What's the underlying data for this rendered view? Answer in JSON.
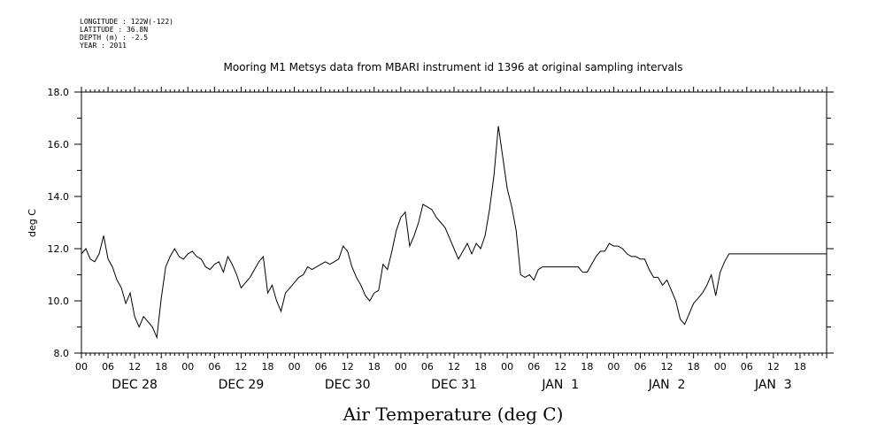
{
  "header": {
    "longitude": "LONGITUDE : 122W(-122)",
    "latitude": "LATITUDE : 36.8N",
    "depth": "DEPTH (m) : -2.5",
    "year": "YEAR : 2011"
  },
  "chart_data": {
    "type": "line",
    "title": "Mooring M1 Metsys data from MBARI instrument id 1396 at original sampling intervals",
    "xlabel": "Air Temperature (deg C)",
    "ylabel": "deg C",
    "ylim": [
      8.0,
      18.0
    ],
    "xlim_hours": [
      0,
      168
    ],
    "yticks": [
      "8.0",
      "10.0",
      "12.0",
      "14.0",
      "16.0",
      "18.0"
    ],
    "hour_labels": [
      "00",
      "06",
      "12",
      "18",
      "00",
      "06",
      "12",
      "18",
      "00",
      "06",
      "12",
      "18",
      "00",
      "06",
      "12",
      "18",
      "00",
      "06",
      "12",
      "18",
      "00",
      "06",
      "12",
      "18",
      "00",
      "06",
      "12",
      "18"
    ],
    "date_labels": [
      "DEC 28",
      "DEC 29",
      "DEC 30",
      "DEC 31",
      "JAN  1",
      "JAN  2",
      "JAN  3"
    ],
    "grid": false,
    "series": [
      {
        "x": [
          0,
          1,
          2,
          3,
          4,
          5,
          6,
          7,
          8,
          9,
          10,
          11,
          12,
          13,
          14,
          15,
          16,
          17,
          18,
          19,
          20,
          21,
          22,
          23,
          24,
          25,
          26,
          27,
          28,
          29,
          30,
          31,
          32,
          33,
          34,
          35,
          36,
          37,
          38,
          39,
          40,
          41,
          42,
          43,
          44,
          45,
          46,
          47,
          48,
          49,
          50,
          51,
          52,
          53,
          54,
          55,
          56,
          57,
          58,
          59,
          60,
          61,
          62,
          63,
          64,
          65,
          66,
          67,
          68,
          69,
          70,
          71,
          72,
          73,
          74,
          75,
          76,
          77,
          78,
          79,
          80,
          81,
          82,
          83,
          84,
          85,
          86,
          87,
          88,
          89,
          90,
          91,
          92,
          93,
          94,
          95,
          96,
          97,
          98,
          99,
          100,
          101,
          102,
          103,
          104,
          105,
          106,
          107,
          108,
          109,
          110,
          111,
          112,
          113,
          114,
          115,
          116,
          117,
          118,
          119,
          120,
          121,
          122,
          123,
          124,
          125,
          126,
          127,
          128,
          129,
          130,
          131,
          132,
          133,
          134,
          135,
          136,
          137,
          138,
          139,
          140,
          141,
          142,
          143,
          144,
          145,
          146,
          147,
          148,
          149,
          150,
          151,
          152,
          153,
          154,
          155,
          156,
          157,
          158,
          159,
          160,
          161,
          162,
          163,
          164,
          165,
          166,
          167,
          168
        ],
        "y": [
          11.8,
          12.0,
          11.6,
          11.5,
          11.8,
          12.5,
          11.6,
          11.3,
          10.8,
          10.5,
          9.9,
          10.3,
          9.4,
          9.0,
          9.4,
          9.2,
          9.0,
          8.6,
          10.1,
          11.3,
          11.7,
          12.0,
          11.7,
          11.6,
          11.8,
          11.9,
          11.7,
          11.6,
          11.3,
          11.2,
          11.4,
          11.5,
          11.1,
          11.7,
          11.4,
          11.0,
          10.5,
          10.7,
          10.9,
          11.2,
          11.5,
          11.7,
          10.3,
          10.6,
          10.0,
          9.6,
          10.3,
          10.5,
          10.7,
          10.9,
          11.0,
          11.3,
          11.2,
          11.3,
          11.4,
          11.5,
          11.4,
          11.5,
          11.6,
          12.1,
          11.9,
          11.3,
          10.9,
          10.6,
          10.2,
          10.0,
          10.3,
          10.4,
          11.4,
          11.2,
          11.9,
          12.7,
          13.2,
          13.4,
          12.1,
          12.5,
          13.0,
          13.7,
          13.6,
          13.5,
          13.2,
          13.0,
          12.8,
          12.4,
          12.0,
          11.6,
          11.9,
          12.2,
          11.8,
          12.2,
          12.0,
          12.5,
          13.5,
          14.8,
          16.7,
          15.5,
          14.3,
          13.6,
          12.7,
          11.0,
          10.9,
          11.0,
          10.8,
          11.2,
          11.3,
          11.3,
          11.3,
          11.3,
          11.3,
          11.3,
          11.3,
          11.3,
          11.3,
          11.1,
          11.1,
          11.4,
          11.7,
          11.9,
          11.9,
          12.2,
          12.1,
          12.1,
          12.0,
          11.8,
          11.7,
          11.7,
          11.6,
          11.6,
          11.2,
          10.9,
          10.9,
          10.6,
          10.8,
          10.4,
          10.0,
          9.3,
          9.1,
          9.5,
          9.9,
          10.1,
          10.3,
          10.6,
          11.0,
          10.2,
          11.1,
          11.5,
          11.8,
          11.8,
          11.8,
          11.8,
          11.8,
          11.8,
          11.8,
          11.8,
          11.8,
          11.8,
          11.8,
          11.8,
          11.8,
          11.8,
          11.8,
          11.8,
          11.8,
          11.8,
          11.8,
          11.8,
          11.8,
          11.8,
          11.8
        ]
      }
    ]
  }
}
